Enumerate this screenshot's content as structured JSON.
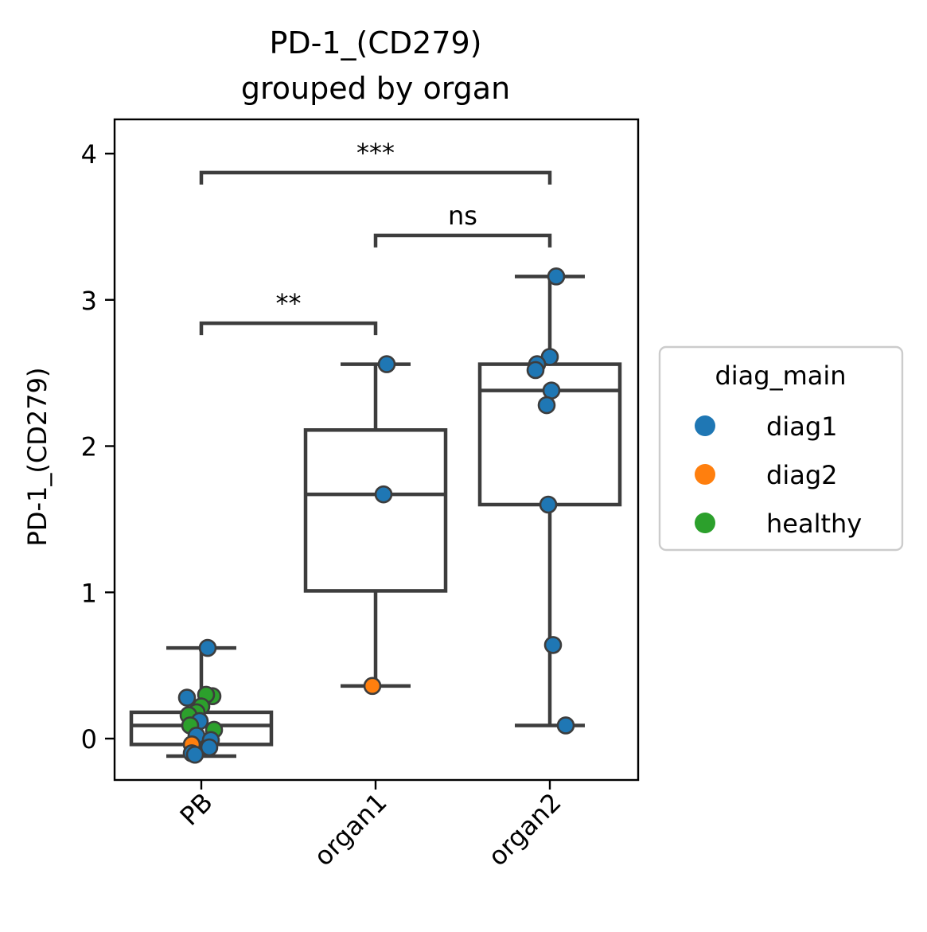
{
  "chart_data": {
    "type": "box",
    "title": [
      "PD-1_(CD279)",
      "grouped by organ"
    ],
    "xlabel": "",
    "ylabel": "PD-1_(CD279)",
    "categories": [
      "PB",
      "organ1",
      "organ2"
    ],
    "ylim": [
      -0.28,
      4.22
    ],
    "yticks": [
      0,
      1,
      2,
      3,
      4
    ],
    "grid": false,
    "colors": {
      "diag1": "#1f77b4",
      "diag2": "#ff7f0e",
      "healthy": "#2ca02c",
      "box": "#3d3d3d"
    },
    "legend": {
      "title": "diag_main",
      "placement": "right",
      "entries": [
        "diag1",
        "diag2",
        "healthy"
      ]
    },
    "boxes": [
      {
        "category": "PB",
        "whisker_low": -0.12,
        "q1": -0.04,
        "median": 0.09,
        "q3": 0.18,
        "whisker_high": 0.62
      },
      {
        "category": "organ1",
        "whisker_low": 0.36,
        "q1": 1.01,
        "median": 1.67,
        "q3": 2.11,
        "whisker_high": 2.56
      },
      {
        "category": "organ2",
        "whisker_low": 0.09,
        "q1": 1.6,
        "median": 2.38,
        "q3": 2.56,
        "whisker_high": 3.16
      }
    ],
    "points": [
      {
        "category": "PB",
        "y": 0.62,
        "group": "diag1"
      },
      {
        "category": "PB",
        "y": 0.28,
        "group": "diag1"
      },
      {
        "category": "PB",
        "y": 0.29,
        "group": "healthy"
      },
      {
        "category": "PB",
        "y": 0.3,
        "group": "healthy"
      },
      {
        "category": "PB",
        "y": 0.22,
        "group": "healthy"
      },
      {
        "category": "PB",
        "y": 0.18,
        "group": "healthy"
      },
      {
        "category": "PB",
        "y": 0.16,
        "group": "healthy"
      },
      {
        "category": "PB",
        "y": 0.12,
        "group": "diag1"
      },
      {
        "category": "PB",
        "y": 0.09,
        "group": "healthy"
      },
      {
        "category": "PB",
        "y": 0.06,
        "group": "healthy"
      },
      {
        "category": "PB",
        "y": 0.02,
        "group": "diag1"
      },
      {
        "category": "PB",
        "y": -0.01,
        "group": "diag1"
      },
      {
        "category": "PB",
        "y": -0.04,
        "group": "diag2"
      },
      {
        "category": "PB",
        "y": -0.06,
        "group": "diag1"
      },
      {
        "category": "PB",
        "y": -0.1,
        "group": "diag1"
      },
      {
        "category": "PB",
        "y": -0.11,
        "group": "diag1"
      },
      {
        "category": "organ1",
        "y": 2.56,
        "group": "diag1"
      },
      {
        "category": "organ1",
        "y": 1.67,
        "group": "diag1"
      },
      {
        "category": "organ1",
        "y": 0.36,
        "group": "diag2"
      },
      {
        "category": "organ2",
        "y": 3.16,
        "group": "diag1"
      },
      {
        "category": "organ2",
        "y": 2.61,
        "group": "diag1"
      },
      {
        "category": "organ2",
        "y": 2.56,
        "group": "diag1"
      },
      {
        "category": "organ2",
        "y": 2.52,
        "group": "diag1"
      },
      {
        "category": "organ2",
        "y": 2.38,
        "group": "diag1"
      },
      {
        "category": "organ2",
        "y": 2.28,
        "group": "diag1"
      },
      {
        "category": "organ2",
        "y": 1.6,
        "group": "diag1"
      },
      {
        "category": "organ2",
        "y": 0.64,
        "group": "diag1"
      },
      {
        "category": "organ2",
        "y": 0.09,
        "group": "diag1"
      }
    ],
    "annotations": [
      {
        "from": "PB",
        "to": "organ1",
        "y": 2.84,
        "label": "**"
      },
      {
        "from": "organ1",
        "to": "organ2",
        "y": 3.44,
        "label": "ns"
      },
      {
        "from": "PB",
        "to": "organ2",
        "y": 3.87,
        "label": "***"
      }
    ]
  }
}
